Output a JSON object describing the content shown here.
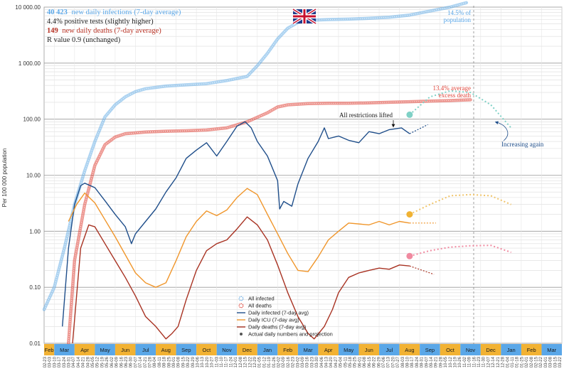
{
  "chart_data": {
    "type": "line",
    "ylabel": "Per 100 000 population",
    "y_scale": "log",
    "ylim": [
      0.01,
      10000
    ],
    "y_ticks": [
      "10 000.00",
      "1 000.00",
      "100.00",
      "10.00",
      "1.00",
      "0.10",
      "0.01"
    ],
    "grid": true,
    "flag_icon": "uk-flag-icon",
    "info": {
      "line1_bold": "40 423",
      "line1_rest": "new daily infections (7-day average)",
      "line2": "4.4% positive tests (slightly higher)",
      "line3_bold": "149",
      "line3_rest": "new daily deaths (7-day average)",
      "line4": "R value 0.9 (unchanged)"
    },
    "annotations": {
      "population": "14.5% of population",
      "excess_death": "13.4% average excess death",
      "restrictions": "All restrictions lifted",
      "increasing": "Increasing again"
    },
    "legend": [
      {
        "label": "All infected",
        "color": "#6aaee6"
      },
      {
        "label": "All deaths",
        "color": "#e0453a"
      },
      {
        "label": "Daily infected (7-day avg)",
        "color": "#1f4e8a"
      },
      {
        "label": "Daily ICU (7-day avg)",
        "color": "#f0962b"
      },
      {
        "label": "Daily deaths (7-day avg)",
        "color": "#a83222"
      },
      {
        "label": "Actual daily numbers and projection",
        "color": "#555555"
      }
    ],
    "months": [
      "Feb",
      "Mar",
      "Apr",
      "May",
      "Jun",
      "Jul",
      "Aug",
      "Sep",
      "Oct",
      "Nov",
      "Dec",
      "Jan",
      "Feb",
      "Mar",
      "Apr",
      "May",
      "Jun",
      "Jul",
      "Aug",
      "Sep",
      "Oct",
      "Nov",
      "Dec",
      "Jan",
      "Feb",
      "Mar"
    ],
    "month_colors": [
      "#f2b233",
      "#5aa7e8"
    ],
    "dates": [
      "02-23",
      "03-03",
      "03-10",
      "03-17",
      "03-24",
      "03-31",
      "04-07",
      "04-14",
      "04-21",
      "04-28",
      "05-05",
      "05-12",
      "05-19",
      "05-26",
      "06-02",
      "06-09",
      "06-16",
      "06-23",
      "06-30",
      "07-07",
      "07-14",
      "07-21",
      "07-28",
      "08-04",
      "08-11",
      "08-18",
      "08-25",
      "09-01",
      "09-08",
      "09-15",
      "09-22",
      "09-29",
      "10-06",
      "10-13",
      "10-20",
      "10-27",
      "11-03",
      "11-10",
      "11-17",
      "11-24",
      "12-01",
      "12-08",
      "12-15",
      "12-22",
      "12-29",
      "01-05",
      "01-12",
      "01-19",
      "01-26",
      "02-02",
      "02-09",
      "02-16",
      "02-23",
      "03-02",
      "03-09",
      "03-16",
      "03-23",
      "03-30",
      "04-06",
      "04-13",
      "04-20",
      "04-27",
      "05-04",
      "05-11",
      "05-18",
      "05-25",
      "06-01",
      "06-08",
      "06-15",
      "06-22",
      "06-29",
      "07-06",
      "07-13",
      "07-20",
      "07-27",
      "08-03",
      "08-10",
      "08-17",
      "08-24",
      "08-31",
      "09-07",
      "09-14",
      "09-21",
      "09-28",
      "10-05",
      "10-12",
      "10-19",
      "10-26",
      "11-02",
      "11-09",
      "11-16",
      "11-23",
      "11-30",
      "12-07",
      "12-14",
      "12-21",
      "12-28",
      "01-04",
      "01-11",
      "01-18",
      "01-25",
      "02-01",
      "02-08",
      "02-15",
      "02-22",
      "03-01",
      "03-08",
      "03-15",
      "03-22"
    ],
    "series": [
      {
        "key": "all_infected",
        "color": "#6aaee6",
        "points": [
          [
            0,
            0.04
          ],
          [
            0.5,
            0.1
          ],
          [
            1,
            0.5
          ],
          [
            1.5,
            3
          ],
          [
            2,
            12
          ],
          [
            2.5,
            40
          ],
          [
            3,
            110
          ],
          [
            3.5,
            180
          ],
          [
            4,
            250
          ],
          [
            4.5,
            310
          ],
          [
            5,
            350
          ],
          [
            6,
            390
          ],
          [
            7,
            410
          ],
          [
            8,
            430
          ],
          [
            9,
            490
          ],
          [
            10,
            580
          ],
          [
            10.5,
            900
          ],
          [
            11,
            1500
          ],
          [
            11.5,
            2700
          ],
          [
            12,
            4200
          ],
          [
            12.5,
            5300
          ],
          [
            13,
            5800
          ],
          [
            14,
            6000
          ],
          [
            15,
            6100
          ],
          [
            16,
            6300
          ],
          [
            17,
            6600
          ],
          [
            18,
            7200
          ],
          [
            19,
            8500
          ],
          [
            20,
            10000
          ],
          [
            20.8,
            12000
          ]
        ]
      },
      {
        "key": "all_deaths",
        "color": "#e0453a",
        "points": [
          [
            1.2,
            0.01
          ],
          [
            1.5,
            0.3
          ],
          [
            2,
            3
          ],
          [
            2.5,
            15
          ],
          [
            3,
            35
          ],
          [
            3.5,
            48
          ],
          [
            4,
            55
          ],
          [
            5,
            59
          ],
          [
            6,
            61
          ],
          [
            7,
            62
          ],
          [
            8,
            64
          ],
          [
            9,
            70
          ],
          [
            10,
            90
          ],
          [
            11,
            130
          ],
          [
            11.5,
            165
          ],
          [
            12,
            180
          ],
          [
            13,
            190
          ],
          [
            14,
            192
          ],
          [
            15,
            193
          ],
          [
            16,
            195
          ],
          [
            17,
            200
          ],
          [
            18,
            205
          ],
          [
            19,
            210
          ],
          [
            20,
            215
          ],
          [
            21,
            222
          ]
        ]
      },
      {
        "key": "daily_infected",
        "color": "#1f4e8a",
        "points": [
          [
            0.9,
            0.02
          ],
          [
            1.2,
            0.5
          ],
          [
            1.5,
            3
          ],
          [
            1.8,
            6.5
          ],
          [
            2,
            7.2
          ],
          [
            2.5,
            6
          ],
          [
            3,
            3.5
          ],
          [
            3.5,
            2
          ],
          [
            4,
            1.2
          ],
          [
            4.3,
            0.6
          ],
          [
            4.5,
            0.9
          ],
          [
            5,
            1.5
          ],
          [
            5.5,
            2.5
          ],
          [
            6,
            5
          ],
          [
            6.5,
            9
          ],
          [
            7,
            20
          ],
          [
            7.5,
            28
          ],
          [
            8,
            38
          ],
          [
            8.5,
            22
          ],
          [
            9,
            40
          ],
          [
            9.5,
            75
          ],
          [
            9.9,
            90
          ],
          [
            10.2,
            70
          ],
          [
            10.5,
            40
          ],
          [
            11,
            22
          ],
          [
            11.3,
            12
          ],
          [
            11.5,
            8
          ],
          [
            11.6,
            2.5
          ],
          [
            11.8,
            3.4
          ],
          [
            12.2,
            2.8
          ],
          [
            12.5,
            7
          ],
          [
            13,
            20
          ],
          [
            13.5,
            40
          ],
          [
            13.8,
            70
          ],
          [
            14,
            45
          ],
          [
            14.5,
            50
          ],
          [
            15,
            42
          ],
          [
            15.5,
            38
          ],
          [
            16,
            60
          ],
          [
            16.5,
            55
          ],
          [
            17,
            65
          ],
          [
            17.6,
            70
          ],
          [
            18,
            55
          ]
        ]
      },
      {
        "key": "daily_icu",
        "color": "#f0962b",
        "points": [
          [
            1.2,
            1.5
          ],
          [
            1.6,
            3
          ],
          [
            2,
            4.8
          ],
          [
            2.5,
            3.2
          ],
          [
            3,
            1.6
          ],
          [
            3.5,
            0.8
          ],
          [
            4,
            0.38
          ],
          [
            4.5,
            0.18
          ],
          [
            5,
            0.12
          ],
          [
            5.5,
            0.1
          ],
          [
            6,
            0.12
          ],
          [
            6.5,
            0.3
          ],
          [
            7,
            0.8
          ],
          [
            7.5,
            1.5
          ],
          [
            8,
            2.3
          ],
          [
            8.5,
            1.9
          ],
          [
            9,
            2.4
          ],
          [
            9.5,
            4
          ],
          [
            10,
            5.8
          ],
          [
            10.5,
            4.5
          ],
          [
            11,
            2
          ],
          [
            11.5,
            0.9
          ],
          [
            12,
            0.4
          ],
          [
            12.5,
            0.2
          ],
          [
            13,
            0.19
          ],
          [
            13.5,
            0.35
          ],
          [
            14,
            0.7
          ],
          [
            14.5,
            1
          ],
          [
            15,
            1.4
          ],
          [
            16,
            1.3
          ],
          [
            16.5,
            1.5
          ],
          [
            17,
            1.3
          ],
          [
            17.5,
            1.5
          ],
          [
            18,
            1.4
          ]
        ]
      },
      {
        "key": "daily_deaths",
        "color": "#a83222",
        "points": [
          [
            1.4,
            0.01
          ],
          [
            1.8,
            0.5
          ],
          [
            2.2,
            1.3
          ],
          [
            2.5,
            1.2
          ],
          [
            3,
            0.6
          ],
          [
            3.5,
            0.3
          ],
          [
            4,
            0.15
          ],
          [
            4.5,
            0.07
          ],
          [
            5,
            0.03
          ],
          [
            5.5,
            0.02
          ],
          [
            6,
            0.012
          ],
          [
            6.3,
            0.015
          ],
          [
            6.6,
            0.02
          ],
          [
            7,
            0.06
          ],
          [
            7.5,
            0.2
          ],
          [
            8,
            0.45
          ],
          [
            8.5,
            0.6
          ],
          [
            9,
            0.7
          ],
          [
            9.5,
            1.1
          ],
          [
            10,
            1.8
          ],
          [
            10.5,
            1.3
          ],
          [
            11,
            0.7
          ],
          [
            11.5,
            0.25
          ],
          [
            12,
            0.08
          ],
          [
            12.5,
            0.03
          ],
          [
            13,
            0.015
          ],
          [
            13.3,
            0.012
          ],
          [
            13.8,
            0.02
          ],
          [
            14.2,
            0.04
          ],
          [
            14.5,
            0.08
          ],
          [
            15,
            0.15
          ],
          [
            15.5,
            0.18
          ],
          [
            16,
            0.2
          ],
          [
            16.5,
            0.22
          ],
          [
            17,
            0.21
          ],
          [
            17.5,
            0.25
          ],
          [
            18,
            0.24
          ]
        ]
      }
    ],
    "projections": [
      {
        "color": "#7fd1c6",
        "dot": "#7fd1c6",
        "points": [
          [
            18,
            120
          ],
          [
            19,
            250
          ],
          [
            20,
            320
          ],
          [
            21,
            300
          ],
          [
            22,
            180
          ],
          [
            23,
            70
          ]
        ]
      },
      {
        "color": "#f0c46a",
        "dot": "#f0b233",
        "points": [
          [
            18,
            2
          ],
          [
            19,
            3
          ],
          [
            20,
            4.3
          ],
          [
            21,
            4.5
          ],
          [
            22,
            4.3
          ],
          [
            23,
            3
          ]
        ]
      },
      {
        "color": "#f08aa0",
        "dot": "#f08aa0",
        "points": [
          [
            18,
            0.36
          ],
          [
            19,
            0.45
          ],
          [
            20,
            0.52
          ],
          [
            21,
            0.55
          ],
          [
            22,
            0.56
          ],
          [
            23,
            0.42
          ]
        ]
      }
    ]
  }
}
